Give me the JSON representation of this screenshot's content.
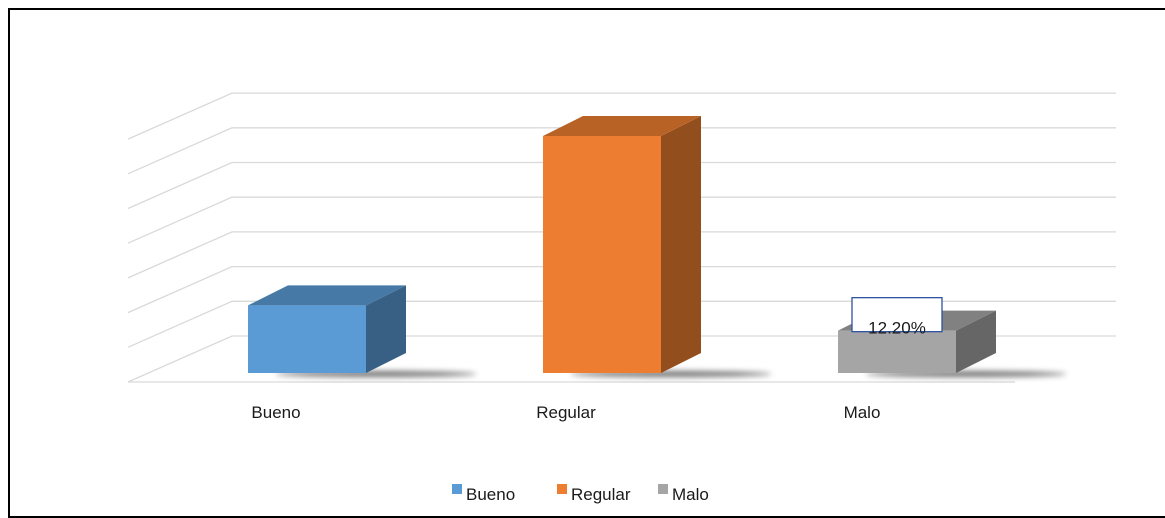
{
  "chart_data": {
    "type": "bar",
    "style": "3d-column",
    "categories": [
      "Bueno",
      "Regular",
      "Malo"
    ],
    "values": [
      19.5,
      68.3,
      12.2
    ],
    "colors": [
      "#5b9bd5",
      "#ed7d31",
      "#a5a5a5"
    ],
    "data_labels": [
      "",
      "",
      "12.20%"
    ],
    "ylim": [
      0,
      70
    ],
    "gridlines": true,
    "legend": {
      "position": "bottom",
      "entries": [
        "Bueno",
        "Regular",
        "Malo"
      ]
    },
    "title": "",
    "xlabel": "",
    "ylabel": ""
  }
}
